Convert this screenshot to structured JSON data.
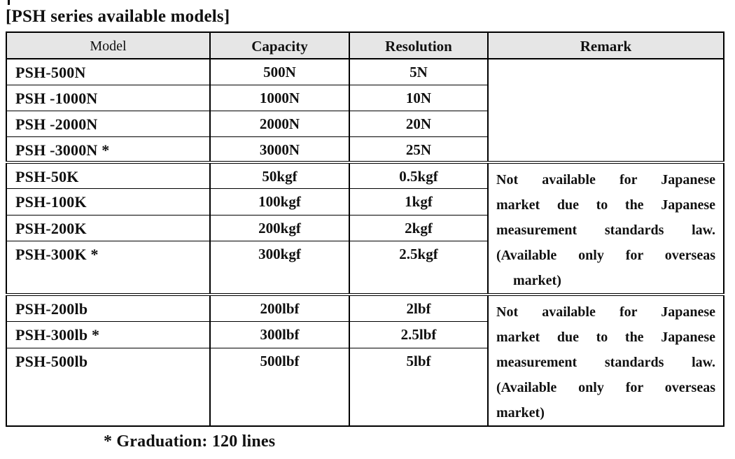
{
  "title": "[PSH series available models]",
  "colors": {
    "header_bg": "#e6e6e6",
    "border": "#000000",
    "text": "#111111"
  },
  "table": {
    "headers": [
      "Model",
      "Capacity",
      "Resolution",
      "Remark"
    ],
    "groups": [
      {
        "unit": "N",
        "rows": [
          {
            "model": "PSH-500N",
            "capacity": "500N",
            "resolution": "5N"
          },
          {
            "model": "PSH -1000N",
            "capacity": "1000N",
            "resolution": "10N"
          },
          {
            "model": "PSH -2000N",
            "capacity": "2000N",
            "resolution": "20N"
          },
          {
            "model": "PSH -3000N *",
            "capacity": "3000N",
            "resolution": "25N"
          }
        ],
        "remark_lines": []
      },
      {
        "unit": "kgf",
        "rows": [
          {
            "model": "PSH-50K",
            "capacity": "50kgf",
            "resolution": "0.5kgf"
          },
          {
            "model": "PSH-100K",
            "capacity": "100kgf",
            "resolution": "1kgf"
          },
          {
            "model": "PSH-200K",
            "capacity": "200kgf",
            "resolution": "2kgf"
          },
          {
            "model": "PSH-300K *",
            "capacity": "300kgf",
            "resolution": "2.5kgf"
          }
        ],
        "remark_lines": [
          "Not available for Japanese",
          "market due to the Japanese",
          "measurement standards law.",
          "(Available only for overseas",
          "market)"
        ]
      },
      {
        "unit": "lbf",
        "rows": [
          {
            "model": "PSH-200lb",
            "capacity": "200lbf",
            "resolution": "2lbf"
          },
          {
            "model": "PSH-300lb *",
            "capacity": "300lbf",
            "resolution": "2.5lbf"
          },
          {
            "model": "PSH-500lb",
            "capacity": "500lbf",
            "resolution": "5lbf"
          }
        ],
        "remark_lines": [
          "Not available for Japanese",
          "market due to the Japanese",
          "measurement standards law.",
          "(Available only for overseas",
          "market)"
        ]
      }
    ]
  },
  "footnote": "* Graduation: 120 lines"
}
